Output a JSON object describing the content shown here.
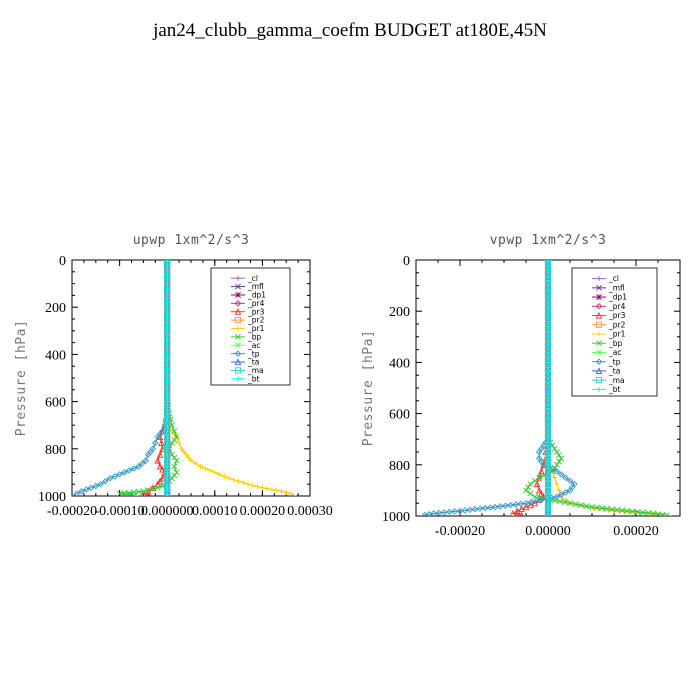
{
  "page_title": "jan24_clubb_gamma_coefm  BUDGET at180E,45N",
  "chart_data": [
    {
      "type": "line",
      "title": "upwp   1xm^2/s^3",
      "ylabel": "Pressure [hPa]",
      "xlabel": "",
      "ylim": [
        1000,
        0
      ],
      "xlim": [
        -0.0002,
        0.0003
      ],
      "y_ticks": [
        "0",
        "200",
        "400",
        "600",
        "800",
        "1000"
      ],
      "x_ticks": [
        "-0.00020",
        "-0.00010",
        "0.000000",
        "0.00010",
        "0.00020",
        "0.00030"
      ],
      "legend_position": "top-right",
      "y": [
        0,
        100,
        200,
        300,
        400,
        500,
        600,
        650,
        700,
        725,
        750,
        775,
        800,
        825,
        850,
        875,
        900,
        925,
        950,
        965,
        980,
        990,
        1000
      ],
      "series": [
        {
          "name": "_cl",
          "color": "#9966cc",
          "values": [
            0,
            0,
            0,
            0,
            0,
            0,
            0,
            0,
            0,
            0,
            0,
            0,
            0,
            0,
            0,
            0,
            0,
            0,
            0,
            0,
            0,
            0,
            0
          ]
        },
        {
          "name": "_mfl",
          "color": "#663399",
          "values": [
            0,
            0,
            0,
            0,
            0,
            0,
            0,
            0,
            0,
            0,
            0,
            0,
            0,
            0,
            0,
            0,
            0,
            0,
            0,
            0,
            0,
            0,
            0
          ]
        },
        {
          "name": "_dp1",
          "color": "#990066",
          "values": [
            0,
            0,
            0,
            0,
            0,
            0,
            0,
            0,
            0,
            0,
            0,
            0,
            0,
            0,
            0,
            0,
            0,
            0,
            0,
            0,
            0,
            0,
            0
          ]
        },
        {
          "name": "_pr4",
          "color": "#cc3366",
          "values": [
            0,
            0,
            0,
            0,
            0,
            0,
            0,
            0,
            0,
            0,
            0,
            0,
            0,
            0,
            0,
            0,
            0,
            0,
            0,
            0,
            0,
            0,
            0
          ]
        },
        {
          "name": "_pr3",
          "color": "#ff3333",
          "values": [
            0,
            0,
            0,
            0,
            0,
            0,
            0,
            0,
            -5e-06,
            -1e-05,
            -1.5e-05,
            -1.2e-05,
            -1e-05,
            -1.5e-05,
            -2e-05,
            -1.5e-05,
            -5e-06,
            -1e-05,
            -2e-05,
            -3e-05,
            -4e-05,
            -5e-05,
            -3e-05
          ]
        },
        {
          "name": "_pr2",
          "color": "#ff9933",
          "values": [
            0,
            0,
            0,
            0,
            0,
            0,
            0,
            0,
            0,
            0,
            0,
            0,
            0,
            0,
            0,
            0,
            0,
            0,
            0,
            0,
            0,
            0,
            0
          ]
        },
        {
          "name": "_pr1",
          "color": "#ffcc00",
          "values": [
            0,
            0,
            0,
            0,
            0,
            0,
            0,
            0,
            5e-06,
            1e-05,
            2e-05,
            2.5e-05,
            3e-05,
            4e-05,
            5e-05,
            7e-05,
            0.0001,
            0.00013,
            0.00017,
            0.0002,
            0.00024,
            0.00026,
            0.00027
          ]
        },
        {
          "name": "_bp",
          "color": "#33cc33",
          "values": [
            0,
            0,
            0,
            0,
            0,
            0,
            0,
            5e-06,
            1e-05,
            1.5e-05,
            2e-05,
            1e-05,
            5e-06,
            1e-05,
            2e-05,
            1.5e-05,
            2e-05,
            1e-05,
            0,
            -2e-05,
            -5e-05,
            -0.0001,
            -6e-05
          ]
        },
        {
          "name": "_ac",
          "color": "#66ff66",
          "values": [
            0,
            0,
            0,
            0,
            0,
            0,
            0,
            0,
            0,
            0,
            0,
            0,
            0,
            0,
            0,
            0,
            0,
            0,
            0,
            0,
            0,
            0,
            0
          ]
        },
        {
          "name": "_tp",
          "color": "#3399cc",
          "values": [
            0,
            0,
            0,
            0,
            0,
            0,
            0,
            0,
            -5e-06,
            -1e-05,
            -2e-05,
            -2.5e-05,
            -3e-05,
            -4e-05,
            -4.5e-05,
            -6e-05,
            -9e-05,
            -0.00012,
            -0.00014,
            -0.00016,
            -0.00018,
            -0.00019,
            -0.0002
          ]
        },
        {
          "name": "_ta",
          "color": "#3366ff",
          "values": [
            0,
            0,
            0,
            0,
            0,
            0,
            0,
            0,
            0,
            0,
            0,
            0,
            0,
            0,
            0,
            0,
            0,
            0,
            0,
            0,
            0,
            0,
            0
          ]
        },
        {
          "name": "_ma",
          "color": "#33cccc",
          "values": [
            0,
            0,
            0,
            0,
            0,
            0,
            0,
            0,
            0,
            0,
            0,
            0,
            0,
            0,
            0,
            0,
            0,
            0,
            0,
            0,
            0,
            0,
            0
          ]
        },
        {
          "name": "_bt",
          "color": "#00ffff",
          "values": [
            0,
            0,
            0,
            0,
            0,
            0,
            0,
            0,
            0,
            0,
            0,
            0,
            0,
            0,
            0,
            0,
            0,
            0,
            0,
            0,
            0,
            0,
            0
          ]
        }
      ]
    },
    {
      "type": "line",
      "title": "vpwp   1xm^2/s^3",
      "ylabel": "Pressure [hPa]",
      "xlabel": "",
      "ylim": [
        1000,
        0
      ],
      "xlim": [
        -0.0003,
        0.0003
      ],
      "y_ticks": [
        "0",
        "200",
        "400",
        "600",
        "800",
        "1000"
      ],
      "x_ticks": [
        "-0.00020",
        "0.00000",
        "0.00020"
      ],
      "legend_position": "top-right",
      "y": [
        0,
        100,
        200,
        300,
        400,
        500,
        600,
        700,
        725,
        750,
        775,
        800,
        825,
        850,
        875,
        900,
        925,
        950,
        965,
        980,
        990,
        1000
      ],
      "series": [
        {
          "name": "_cl",
          "color": "#9966cc",
          "values": [
            0,
            0,
            0,
            0,
            0,
            0,
            0,
            0,
            0,
            0,
            0,
            0,
            0,
            0,
            0,
            0,
            0,
            0,
            0,
            0,
            0,
            0
          ]
        },
        {
          "name": "_mfl",
          "color": "#663399",
          "values": [
            0,
            0,
            0,
            0,
            0,
            0,
            0,
            0,
            0,
            0,
            0,
            0,
            0,
            0,
            0,
            0,
            0,
            0,
            0,
            0,
            0,
            0
          ]
        },
        {
          "name": "_dp1",
          "color": "#990066",
          "values": [
            0,
            0,
            0,
            0,
            0,
            0,
            0,
            0,
            0,
            0,
            0,
            0,
            0,
            0,
            0,
            0,
            0,
            0,
            0,
            0,
            0,
            0
          ]
        },
        {
          "name": "_pr4",
          "color": "#cc3366",
          "values": [
            0,
            0,
            0,
            0,
            0,
            0,
            0,
            0,
            0,
            0,
            0,
            0,
            0,
            0,
            0,
            0,
            0,
            0,
            0,
            0,
            0,
            0
          ]
        },
        {
          "name": "_pr3",
          "color": "#ff3333",
          "values": [
            0,
            0,
            0,
            0,
            0,
            0,
            0,
            0,
            -2e-06,
            -5e-06,
            -5e-06,
            -1e-05,
            -1.5e-05,
            -2e-05,
            -2.5e-05,
            -2e-05,
            -1e-05,
            -3e-05,
            -5e-05,
            -7e-05,
            -8e-05,
            -5e-05
          ]
        },
        {
          "name": "_pr2",
          "color": "#ff9933",
          "values": [
            0,
            0,
            0,
            0,
            0,
            0,
            0,
            0,
            0,
            0,
            0,
            0,
            0,
            0,
            0,
            0,
            0,
            0,
            0,
            0,
            0,
            0
          ]
        },
        {
          "name": "_pr1",
          "color": "#ffcc00",
          "values": [
            0,
            0,
            0,
            0,
            0,
            0,
            0,
            0,
            0,
            0,
            0,
            5e-06,
            1e-05,
            1.5e-05,
            2e-05,
            2.5e-05,
            3e-05,
            5e-05,
            9e-05,
            0.00015,
            0.00022,
            0.00028
          ]
        },
        {
          "name": "_bp",
          "color": "#33cc33",
          "values": [
            0,
            0,
            0,
            0,
            0,
            0,
            0,
            0,
            1e-05,
            2e-05,
            3e-05,
            2e-05,
            1e-05,
            -2e-05,
            -4e-05,
            -5e-05,
            -3e-05,
            5e-05,
            0.0001,
            0.00018,
            0.00024,
            0.00028
          ]
        },
        {
          "name": "_ac",
          "color": "#66ff66",
          "values": [
            0,
            0,
            0,
            0,
            0,
            0,
            0,
            0,
            0,
            0,
            0,
            0,
            0,
            0,
            0,
            0,
            0,
            0,
            0,
            0,
            0,
            0
          ]
        },
        {
          "name": "_tp",
          "color": "#3399cc",
          "values": [
            0,
            0,
            0,
            0,
            0,
            0,
            0,
            0,
            -1e-05,
            -2e-05,
            -2e-05,
            -1e-05,
            2e-05,
            4e-05,
            6e-05,
            5e-05,
            2e-05,
            -5e-05,
            -0.00012,
            -0.0002,
            -0.00026,
            -0.00029
          ]
        },
        {
          "name": "_ta",
          "color": "#3366ff",
          "values": [
            0,
            0,
            0,
            0,
            0,
            0,
            0,
            0,
            0,
            0,
            0,
            0,
            0,
            0,
            0,
            0,
            0,
            0,
            0,
            0,
            0,
            0
          ]
        },
        {
          "name": "_ma",
          "color": "#33cccc",
          "values": [
            0,
            0,
            0,
            0,
            0,
            0,
            0,
            0,
            0,
            0,
            0,
            0,
            0,
            0,
            0,
            0,
            0,
            0,
            0,
            0,
            0,
            0
          ]
        },
        {
          "name": "_bt",
          "color": "#00ffff",
          "values": [
            0,
            0,
            0,
            0,
            0,
            0,
            0,
            0,
            0,
            0,
            0,
            0,
            0,
            0,
            0,
            0,
            0,
            0,
            0,
            0,
            0,
            0
          ]
        }
      ]
    }
  ]
}
